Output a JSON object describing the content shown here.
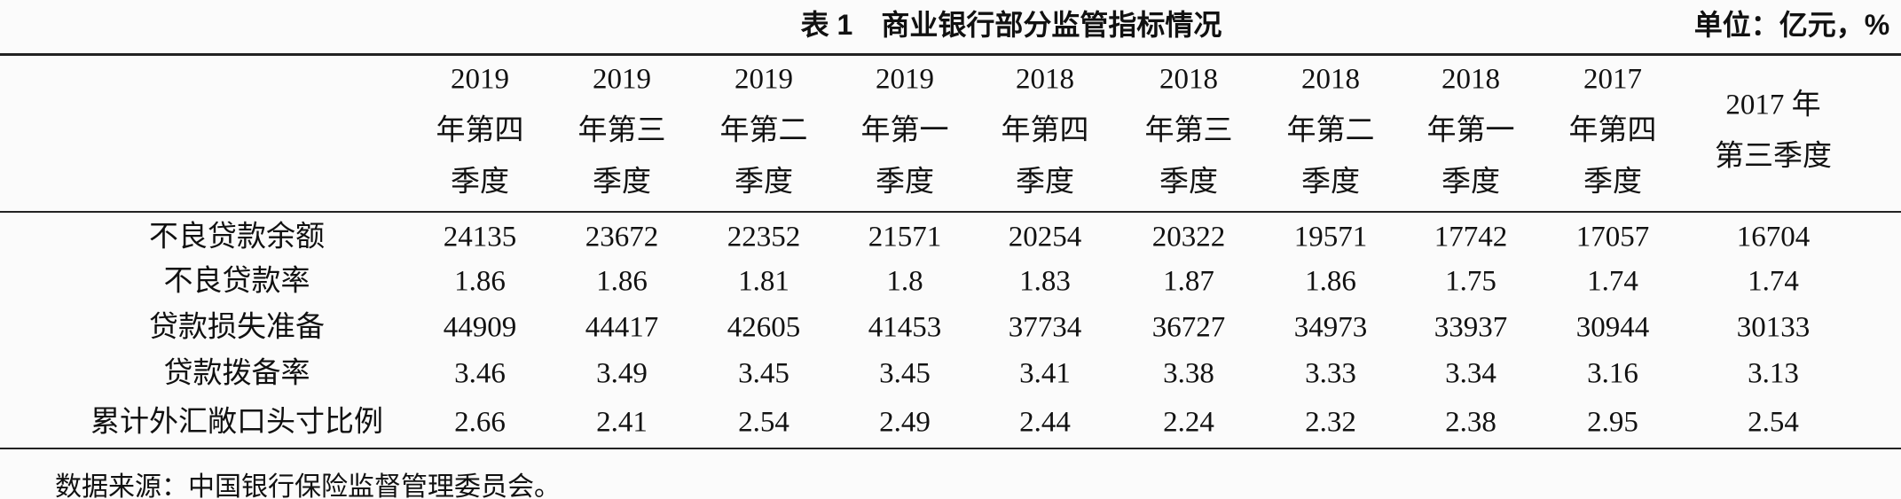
{
  "header": {
    "title": "表 1　商业银行部分监管指标情况",
    "unit": "单位：亿元，%"
  },
  "table": {
    "columns": [
      [
        "2019",
        "年第四",
        "季度"
      ],
      [
        "2019",
        "年第三",
        "季度"
      ],
      [
        "2019",
        "年第二",
        "季度"
      ],
      [
        "2019",
        "年第一",
        "季度"
      ],
      [
        "2018",
        "年第四",
        "季度"
      ],
      [
        "2018",
        "年第三",
        "季度"
      ],
      [
        "2018",
        "年第二",
        "季度"
      ],
      [
        "2018",
        "年第一",
        "季度"
      ],
      [
        "2017",
        "年第四",
        "季度"
      ],
      [
        "2017 年",
        "第三季度"
      ]
    ],
    "rows": [
      {
        "label": "不良贷款余额",
        "cells": [
          "24135",
          "23672",
          "22352",
          "21571",
          "20254",
          "20322",
          "19571",
          "17742",
          "17057",
          "16704"
        ]
      },
      {
        "label": "不良贷款率",
        "cells": [
          "1.86",
          "1.86",
          "1.81",
          "1.8",
          "1.83",
          "1.87",
          "1.86",
          "1.75",
          "1.74",
          "1.74"
        ]
      },
      {
        "label": "贷款损失准备",
        "cells": [
          "44909",
          "44417",
          "42605",
          "41453",
          "37734",
          "36727",
          "34973",
          "33937",
          "30944",
          "30133"
        ]
      },
      {
        "label": "贷款拨备率",
        "cells": [
          "3.46",
          "3.49",
          "3.45",
          "3.45",
          "3.41",
          "3.38",
          "3.33",
          "3.34",
          "3.16",
          "3.13"
        ]
      },
      {
        "label": "累计外汇敞口头寸比例",
        "cells": [
          "2.66",
          "2.41",
          "2.54",
          "2.49",
          "2.44",
          "2.24",
          "2.32",
          "2.38",
          "2.95",
          "2.54"
        ]
      }
    ]
  },
  "footnote": "数据来源：中国银行保险监督管理委员会。"
}
